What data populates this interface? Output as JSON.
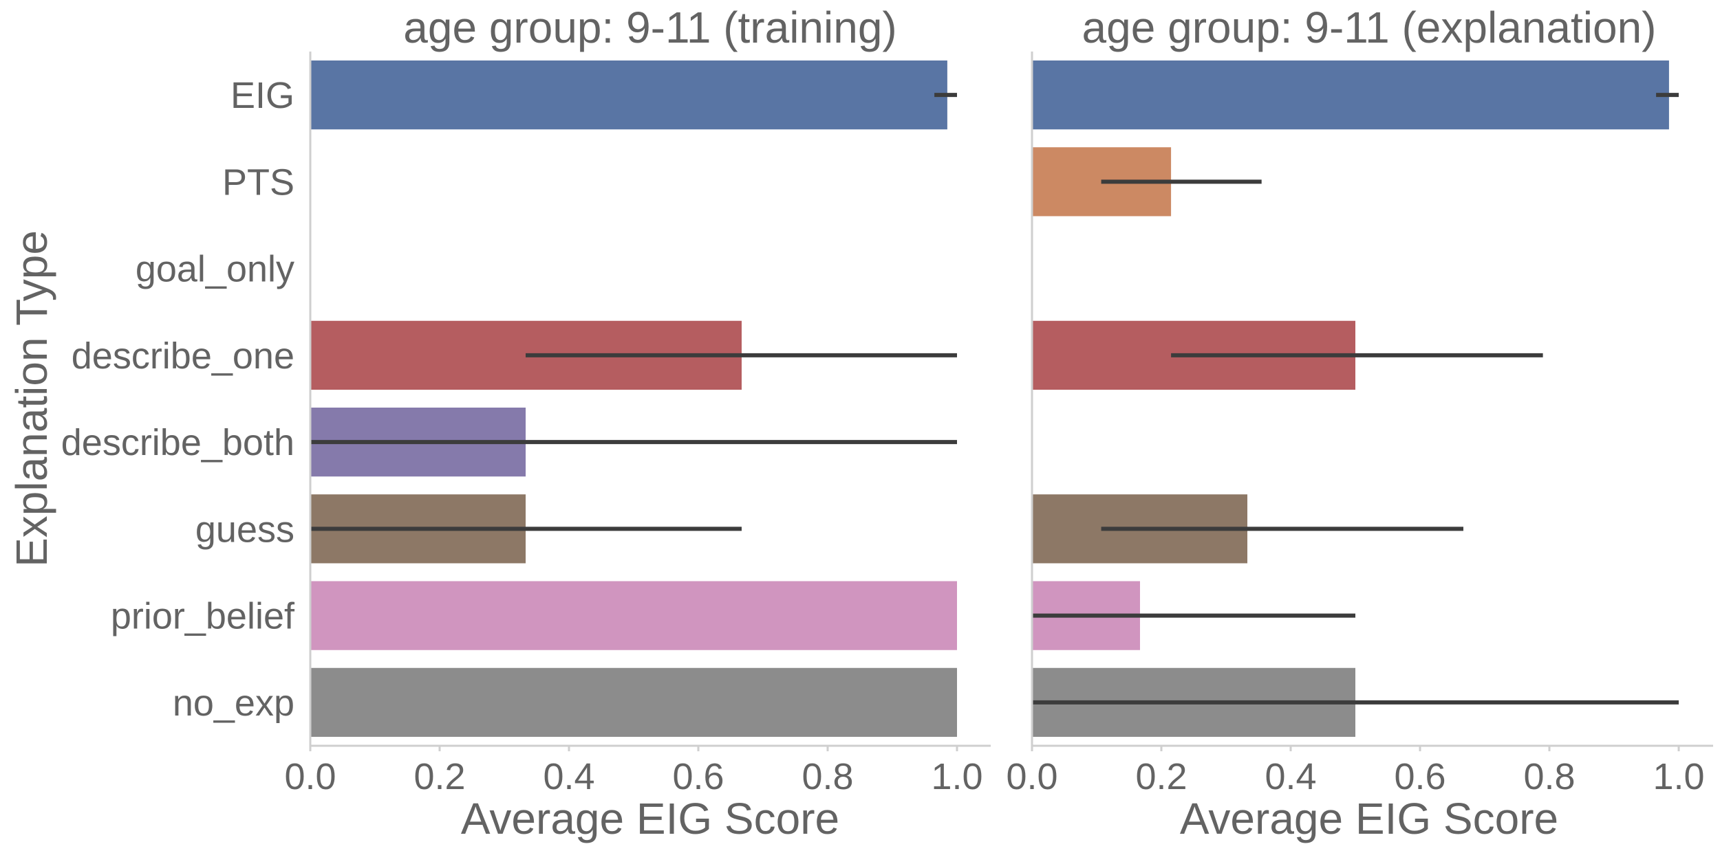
{
  "ylabel": "Explanation Type",
  "chart_data": [
    {
      "type": "bar",
      "orientation": "horizontal",
      "title": "age group: 9-11 (training)",
      "xlabel": "Average EIG Score",
      "ylabel": "Explanation Type",
      "xlim": [
        0.0,
        1.0
      ],
      "xticks": [
        "0.0",
        "0.2",
        "0.4",
        "0.6",
        "0.8",
        "1.0"
      ],
      "grid": false,
      "categories": [
        "EIG",
        "PTS",
        "goal_only",
        "describe_one",
        "describe_both",
        "guess",
        "prior_belief",
        "no_exp"
      ],
      "values": [
        0.985,
        null,
        null,
        0.667,
        0.333,
        0.333,
        1.0,
        1.0
      ],
      "error_low": [
        0.965,
        null,
        null,
        0.333,
        0.0,
        0.0,
        1.0,
        1.0
      ],
      "error_high": [
        1.0,
        null,
        null,
        1.0,
        1.0,
        0.667,
        1.0,
        1.0
      ],
      "colors": [
        "#5975a4",
        "#cc8963",
        "#5f9e6e",
        "#b55d60",
        "#857aab",
        "#8d7866",
        "#d095bf",
        "#8c8c8c"
      ]
    },
    {
      "type": "bar",
      "orientation": "horizontal",
      "title": "age group: 9-11 (explanation)",
      "xlabel": "Average EIG Score",
      "ylabel": "",
      "xlim": [
        0.0,
        1.0
      ],
      "xticks": [
        "0.0",
        "0.2",
        "0.4",
        "0.6",
        "0.8",
        "1.0"
      ],
      "grid": false,
      "categories": [
        "EIG",
        "PTS",
        "goal_only",
        "describe_one",
        "describe_both",
        "guess",
        "prior_belief",
        "no_exp"
      ],
      "values": [
        0.985,
        0.215,
        null,
        0.5,
        null,
        0.333,
        0.167,
        0.5
      ],
      "error_low": [
        0.965,
        0.107,
        null,
        0.215,
        null,
        0.107,
        0.0,
        0.0
      ],
      "error_high": [
        1.0,
        0.355,
        null,
        0.79,
        null,
        0.667,
        0.5,
        1.0
      ],
      "colors": [
        "#5975a4",
        "#cc8963",
        "#5f9e6e",
        "#b55d60",
        "#857aab",
        "#8d7866",
        "#d095bf",
        "#8c8c8c"
      ]
    }
  ]
}
